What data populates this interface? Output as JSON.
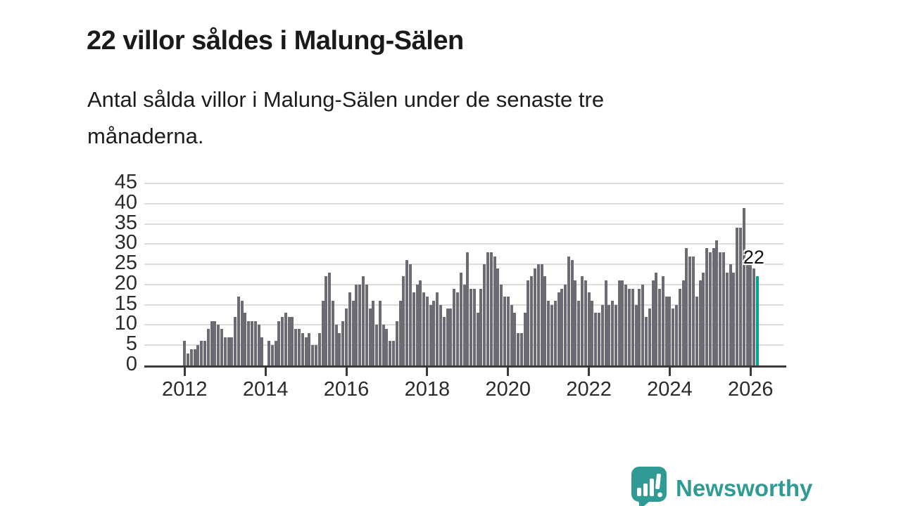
{
  "header": {
    "title": "22 villor såldes i Malung-Sälen",
    "subtitle_lines": [
      "Antal sålda villor i Malung-Sälen under de senaste tre",
      "månaderna."
    ]
  },
  "chart_data": {
    "type": "bar",
    "title": "22 villor såldes i Malung-Sälen",
    "description": "Antal sålda villor i Malung-Sälen under de senaste tre månaderna.",
    "x_start": {
      "year": 2012,
      "month": 1
    },
    "x_end": {
      "year": 2026,
      "month": 3
    },
    "x_tick_labels": [
      "2012",
      "2014",
      "2016",
      "2018",
      "2020",
      "2022",
      "2024",
      "2026"
    ],
    "y_ticks": [
      0,
      5,
      10,
      15,
      20,
      25,
      30,
      35,
      40,
      45
    ],
    "ylim": [
      0,
      45
    ],
    "grid": "horizontal",
    "legend": "none",
    "values": [
      6,
      3,
      4,
      4,
      5,
      6,
      6,
      9,
      11,
      11,
      10,
      9,
      7,
      7,
      7,
      12,
      17,
      16,
      13,
      11,
      11,
      11,
      10,
      7,
      0,
      6,
      5,
      6,
      11,
      12,
      13,
      12,
      12,
      9,
      9,
      8,
      7,
      8,
      5,
      5,
      8,
      16,
      22,
      23,
      16,
      10,
      8,
      11,
      14,
      18,
      16,
      20,
      20,
      22,
      20,
      14,
      16,
      10,
      16,
      10,
      9,
      6,
      6,
      11,
      16,
      22,
      26,
      25,
      18,
      20,
      21,
      18,
      17,
      15,
      16,
      18,
      15,
      12,
      14,
      14,
      19,
      18,
      23,
      20,
      28,
      19,
      19,
      13,
      19,
      25,
      28,
      28,
      27,
      24,
      20,
      17,
      17,
      15,
      13,
      8,
      8,
      13,
      21,
      22,
      24,
      25,
      25,
      22,
      16,
      15,
      16,
      18,
      19,
      20,
      27,
      26,
      21,
      16,
      22,
      21,
      18,
      16,
      13,
      13,
      15,
      21,
      15,
      16,
      15,
      21,
      21,
      20,
      19,
      19,
      15,
      19,
      20,
      12,
      14,
      21,
      23,
      19,
      22,
      17,
      17,
      14,
      15,
      19,
      21,
      29,
      27,
      27,
      17,
      21,
      23,
      29,
      28,
      29,
      31,
      28,
      28,
      23,
      25,
      23,
      34,
      34,
      39,
      26,
      25,
      24,
      22
    ],
    "bar_color": "#6b6b74",
    "highlight": {
      "index": 170,
      "value": 22,
      "label": "22",
      "color": "#00a29a"
    },
    "gridline_color": "#dcdcdc",
    "axis_color": "#3a3a3a"
  },
  "branding": {
    "logo_text": "Newsworthy",
    "logo_color": "#2f9b94",
    "logo_icon": "bar-chart-speech-bubble-icon"
  }
}
